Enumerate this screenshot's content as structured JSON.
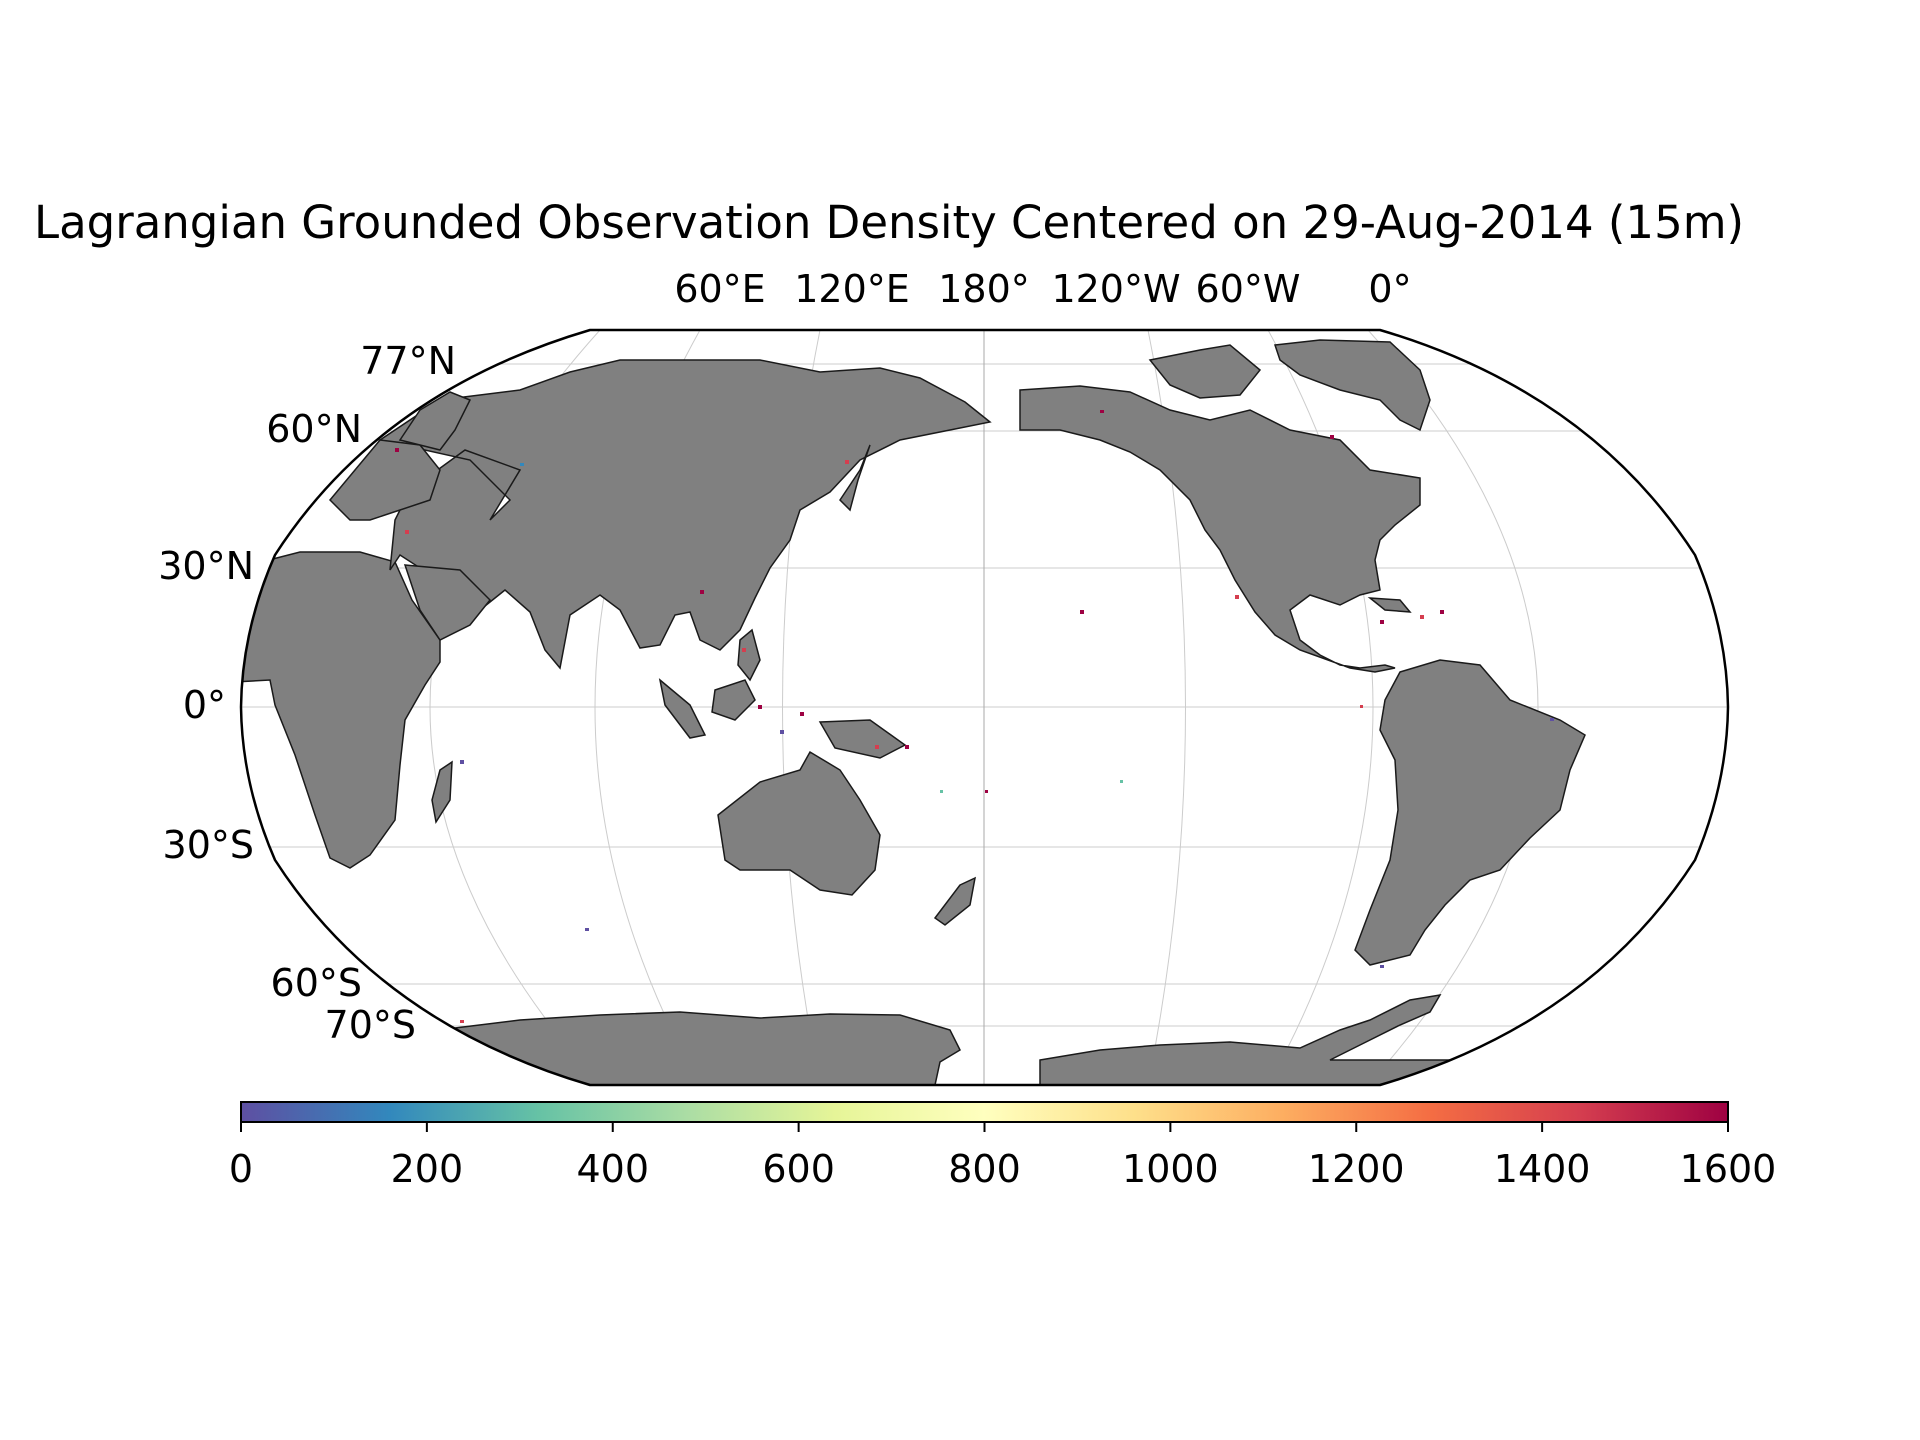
{
  "title": "Lagrangian Grounded Observation Density Centered on 29-Aug-2014 (15m)",
  "longitude_labels": [
    "60°E",
    "120°E",
    "180°",
    "120°W",
    "60°W",
    "0°"
  ],
  "latitude_labels": [
    "77°N",
    "60°N",
    "30°N",
    "0°",
    "30°S",
    "60°S",
    "70°S"
  ],
  "colorbar": {
    "ticks": [
      "0",
      "200",
      "400",
      "600",
      "800",
      "1000",
      "1200",
      "1400",
      "1600"
    ],
    "min": 0,
    "max": 1600,
    "colormap": "Spectral_r",
    "colors": [
      "#5e4fa2",
      "#3288bd",
      "#66c2a5",
      "#abdda4",
      "#e6f598",
      "#ffffbf",
      "#fee08b",
      "#fdae61",
      "#f46d43",
      "#d53e4f",
      "#9e0142"
    ]
  },
  "map": {
    "projection": "Robinson",
    "central_longitude": 180,
    "land_color": "#808080",
    "ocean_color": "#ffffff"
  }
}
